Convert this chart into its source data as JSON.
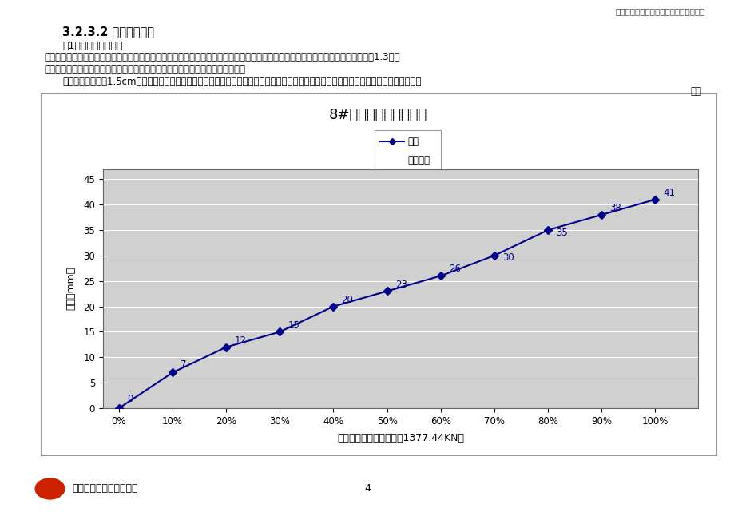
{
  "title": "8#墩挂篮预压变形曲线",
  "xlabel": "加载等级（最大加载重量1377.44KN）",
  "ylabel": "挠度（mm）",
  "x_values": [
    0,
    10,
    20,
    30,
    40,
    50,
    60,
    70,
    80,
    90,
    100
  ],
  "y_values": [
    0,
    7,
    12,
    15,
    20,
    23,
    26,
    30,
    35,
    38,
    41
  ],
  "x_labels": [
    "0%",
    "10%",
    "20%",
    "30%",
    "40%",
    "50%",
    "60%",
    "70%",
    "80%",
    "90%",
    "100%"
  ],
  "y_ticks": [
    0,
    5,
    10,
    15,
    20,
    25,
    30,
    35,
    40,
    45
  ],
  "line_color": "#00008B",
  "marker": "D",
  "marker_size": 5,
  "line_width": 1.5,
  "legend_label1": "挂篮",
  "legend_label2": "累计增量",
  "plot_bg_color": "#D0D0D0",
  "outer_bg_color": "#FFFFFF",
  "grid_color": "#FFFFFF",
  "title_fontsize": 13,
  "axis_fontsize": 9,
  "label_fontsize": 8.5,
  "annotation_fontsize": 8.5,
  "header_text": "东苦黄河大桥大跨度连续梁施工综合技术",
  "section_title": "3.2.3.2 试压结果分析",
  "para1": "（1）挂篮的弹性变形",
  "para2": "为较为准确的测量挂篮的弹性变形曲线，主墩和次主墩的挂篮均分别进行了三次正载试压，每次试压为挂篮主桁最不利设计梁段重量的1.3倍，",
  "para3": "充分的消除了挂篮的非弹性变形后，取第三次的变形曲线为挂篮的弹性变形曲线。",
  "para4": "最大的挠度变形为1.5cm（折合到施工梁段的前端），从试压的结果分析，弹性变形曲线较为合理，可以作为箱梁线形控制的一项取值参数。",
  "figure_label": "图一",
  "footer_company": "中铁十四局集团有限公司",
  "page_number": "4"
}
